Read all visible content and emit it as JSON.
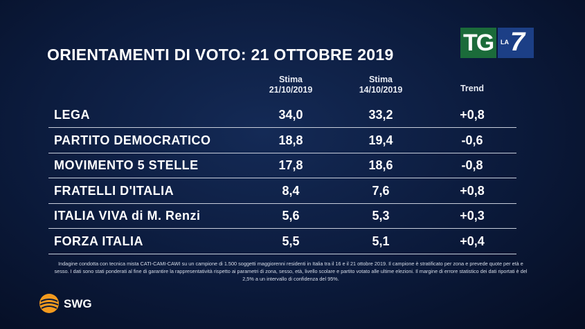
{
  "header": {
    "title": "ORIENTAMENTI DI VOTO: 21 OTTOBRE 2019",
    "logo": {
      "tg": "TG",
      "la": "LA",
      "seven": "7"
    }
  },
  "table": {
    "columns": [
      {
        "lines": [
          "Stima",
          "21/10/2019"
        ]
      },
      {
        "lines": [
          "Stima",
          "14/10/2019"
        ]
      },
      {
        "lines": [
          "Trend"
        ]
      }
    ],
    "rows": [
      [
        "LEGA",
        "34,0",
        "33,2",
        "+0,8"
      ],
      [
        "PARTITO DEMOCRATICO",
        "18,8",
        "19,4",
        "-0,6"
      ],
      [
        "MOVIMENTO 5 STELLE",
        "17,8",
        "18,6",
        "-0,8"
      ],
      [
        "FRATELLI D'ITALIA",
        "8,4",
        "7,6",
        "+0,8"
      ],
      [
        "ITALIA VIVA di M. Renzi",
        "5,6",
        "5,3",
        "+0,3"
      ],
      [
        "FORZA ITALIA",
        "5,5",
        "5,1",
        "+0,4"
      ]
    ]
  },
  "footer": {
    "note": "Indagine condotta con tecnica mista CATI-CAMI-CAWI su un campione di 1.500 soggetti maggiorenni residenti in Italia tra il 16 e il 21 ottobre 2019. Il campione è stratificato per zona e prevede quote per età e sesso. I dati sono stati ponderati al fine di garantire la rappresentatività rispetto ai parametri di zona, sesso, età, livello scolare e partito votato alle ultime elezioni. Il margine di errore statistico dei dati riportati è del 2,5% a un intervallo di confidenza del 95%.",
    "brand": "SWG"
  }
}
